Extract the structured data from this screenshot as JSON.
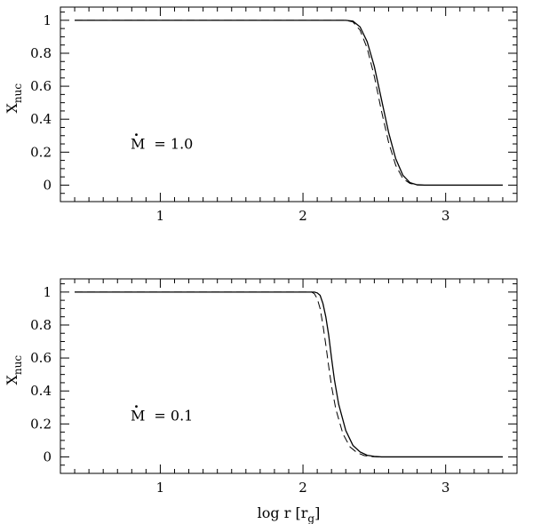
{
  "chart_data": [
    {
      "type": "line",
      "ylabel": "X",
      "ylabel_sub": "nuc",
      "xlabel": "",
      "annotation": {
        "text": "M = 1.0",
        "symbol": "M",
        "value": "= 1.0"
      },
      "xlim": [
        0.3,
        3.5
      ],
      "ylim": [
        -0.1,
        1.08
      ],
      "xticks": [
        1,
        2,
        3
      ],
      "xtick_labels": [
        "1",
        "2",
        "3"
      ],
      "yticks": [
        0,
        0.2,
        0.4,
        0.6,
        0.8,
        1
      ],
      "ytick_labels": [
        "0",
        "0.2",
        "0.4",
        "0.6",
        "0.8",
        "1"
      ],
      "series": [
        {
          "style": "solid",
          "x": [
            0.4,
            2.3,
            2.35,
            2.4,
            2.45,
            2.5,
            2.55,
            2.6,
            2.65,
            2.7,
            2.75,
            2.8,
            2.85,
            3.4
          ],
          "y": [
            1.0,
            1.0,
            0.995,
            0.96,
            0.87,
            0.72,
            0.52,
            0.32,
            0.16,
            0.06,
            0.015,
            0.002,
            0.0,
            0.0
          ]
        },
        {
          "style": "dashed",
          "x": [
            0.4,
            2.3,
            2.35,
            2.4,
            2.45,
            2.5,
            2.55,
            2.6,
            2.65,
            2.7,
            2.75,
            2.8,
            2.85,
            3.4
          ],
          "y": [
            1.0,
            1.0,
            0.99,
            0.94,
            0.83,
            0.66,
            0.45,
            0.26,
            0.12,
            0.04,
            0.01,
            0.001,
            0.0,
            0.0
          ]
        }
      ]
    },
    {
      "type": "line",
      "ylabel": "X",
      "ylabel_sub": "nuc",
      "xlabel": "log r [r",
      "xlabel_sub": "g",
      "xlabel_end": "]",
      "annotation": {
        "text": "M = 0.1",
        "symbol": "M",
        "value": "= 0.1"
      },
      "xlim": [
        0.3,
        3.5
      ],
      "ylim": [
        -0.1,
        1.08
      ],
      "xticks": [
        1,
        2,
        3
      ],
      "xtick_labels": [
        "1",
        "2",
        "3"
      ],
      "yticks": [
        0,
        0.2,
        0.4,
        0.6,
        0.8,
        1
      ],
      "ytick_labels": [
        "0",
        "0.2",
        "0.4",
        "0.6",
        "0.8",
        "1"
      ],
      "series": [
        {
          "style": "solid",
          "x": [
            0.4,
            2.08,
            2.1,
            2.12,
            2.14,
            2.16,
            2.18,
            2.2,
            2.22,
            2.25,
            2.3,
            2.35,
            2.4,
            2.45,
            2.5,
            2.55,
            2.6,
            3.4
          ],
          "y": [
            1.0,
            1.0,
            0.995,
            0.98,
            0.93,
            0.85,
            0.74,
            0.6,
            0.47,
            0.32,
            0.16,
            0.07,
            0.03,
            0.01,
            0.003,
            0.0,
            0.0,
            0.0
          ]
        },
        {
          "style": "dashed",
          "x": [
            0.4,
            2.06,
            2.08,
            2.1,
            2.12,
            2.14,
            2.16,
            2.18,
            2.2,
            2.23,
            2.28,
            2.33,
            2.38,
            2.43,
            2.48,
            2.53,
            2.6,
            3.4
          ],
          "y": [
            1.0,
            1.0,
            0.99,
            0.96,
            0.9,
            0.8,
            0.68,
            0.55,
            0.43,
            0.29,
            0.14,
            0.06,
            0.025,
            0.008,
            0.002,
            0.0,
            0.0,
            0.0
          ]
        }
      ]
    }
  ]
}
